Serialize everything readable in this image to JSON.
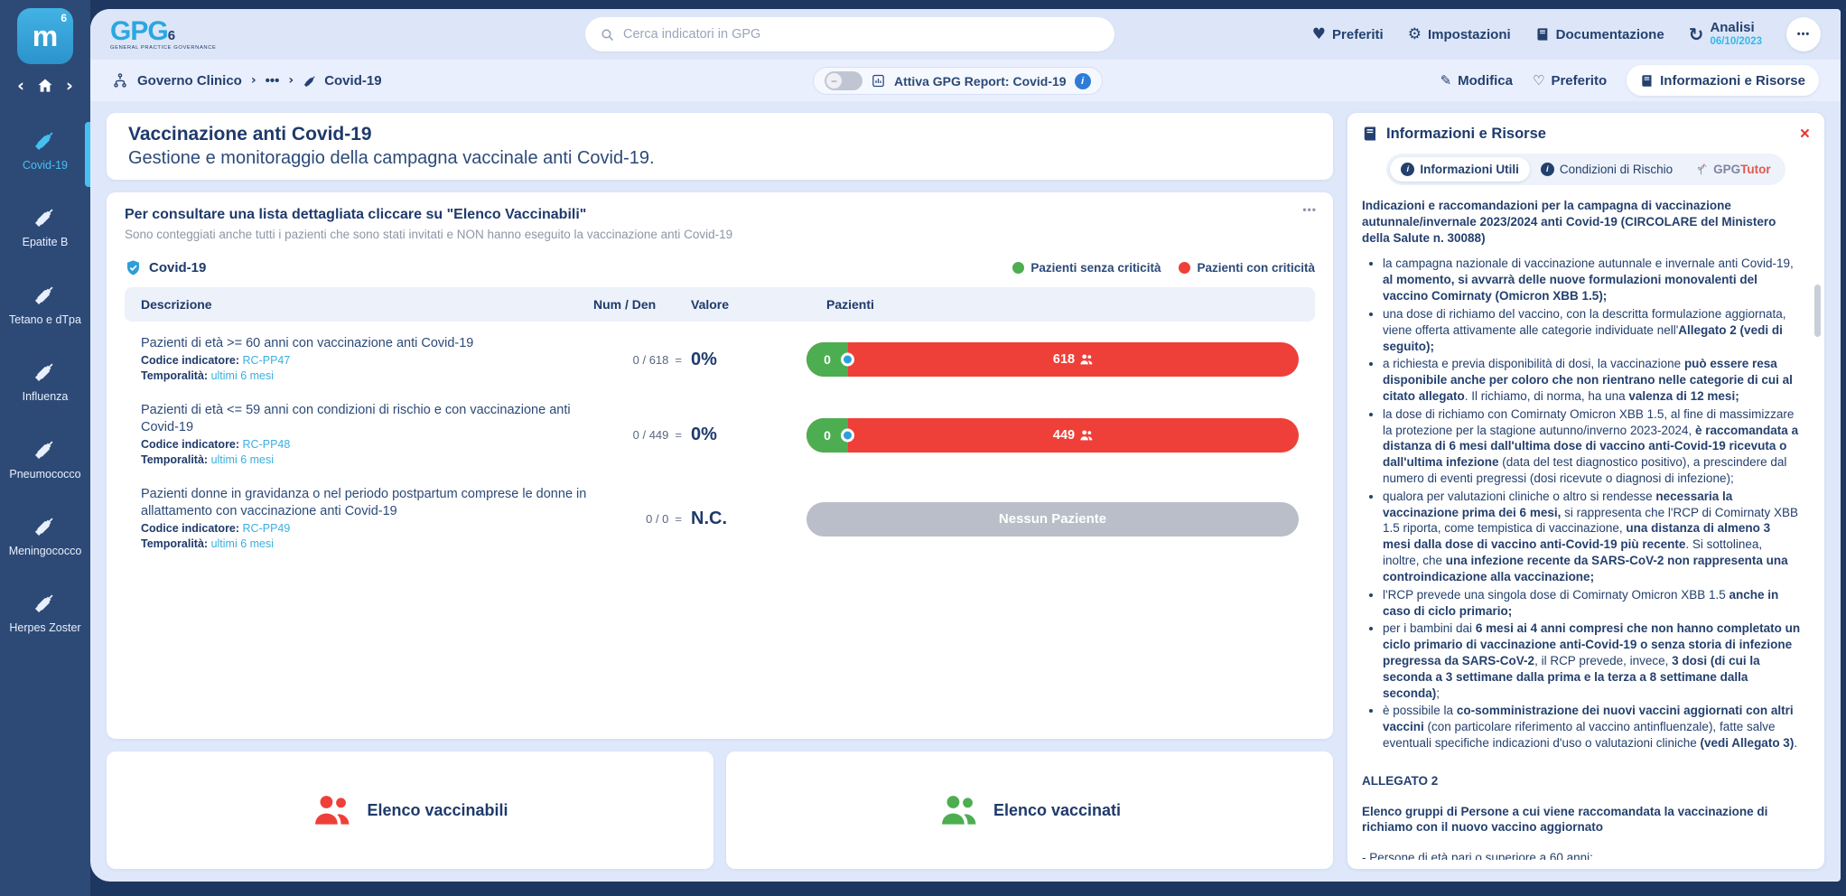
{
  "app": {
    "logo": {
      "word": "GPG",
      "sup": "6",
      "caption": "GENERAL PRACTICE GOVERNANCE",
      "tile_letter": "m",
      "tile_sup": "6"
    },
    "search": {
      "placeholder": "Cerca indicatori in GPG"
    },
    "topnav": [
      {
        "label": "Preferiti"
      },
      {
        "label": "Impostazioni"
      },
      {
        "label": "Documentazione"
      },
      {
        "label": "Analisi",
        "date": "06/10/2023"
      }
    ],
    "more_dots": "•••"
  },
  "breadcrumb": {
    "root": "Governo Clinico",
    "ellipsis": "•••",
    "current": "Covid-19",
    "toggle": {
      "label": "Attiva GPG Report: Covid-19",
      "state": "off",
      "minus": "−",
      "info": "i"
    },
    "actions": [
      {
        "label": "Modifica"
      },
      {
        "label": "Preferito"
      },
      {
        "label": "Informazioni e Risorse"
      }
    ]
  },
  "sidebar": {
    "items": [
      {
        "label": "Covid-19",
        "active": true
      },
      {
        "label": "Epatite B",
        "active": false
      },
      {
        "label": "Tetano e dTpa",
        "active": false
      },
      {
        "label": "Influenza",
        "active": false
      },
      {
        "label": "Pneumococco",
        "active": false
      },
      {
        "label": "Meningococco",
        "active": false
      },
      {
        "label": "Herpes Zoster",
        "active": false
      }
    ]
  },
  "page": {
    "title": "Vaccinazione anti Covid-19",
    "subtitle": "Gestione e monitoraggio della campagna vaccinale anti Covid-19."
  },
  "indicators_card": {
    "title": "Per consultare una lista dettagliata cliccare su \"Elenco Vaccinabili\"",
    "subtitle": "Sono conteggiati anche tutti i pazienti che sono stati invitati e NON hanno eseguito la vaccinazione anti Covid-19",
    "group": "Covid-19",
    "dots": "•••",
    "legend": [
      {
        "label": "Pazienti senza criticità",
        "color": "#4cae50"
      },
      {
        "label": "Pazienti con criticità",
        "color": "#ee4038"
      }
    ],
    "columns": [
      "Descrizione",
      "Num / Den",
      "Valore",
      "Pazienti"
    ],
    "rows": [
      {
        "description": "Pazienti di età >= 60 anni con vaccinazione anti Covid-19",
        "code_label": "Codice indicatore:",
        "code": "RC-PP47",
        "temp_label": "Temporalità:",
        "temporality": "ultimi 6 mesi",
        "num_den": "0 / 618",
        "value": "0%",
        "bar_left": "0",
        "bar_count": "618",
        "bar_type": "split"
      },
      {
        "description": "Pazienti di età <= 59 anni con condizioni di rischio e con vaccinazione anti Covid-19",
        "code_label": "Codice indicatore:",
        "code": "RC-PP48",
        "temp_label": "Temporalità:",
        "temporality": "ultimi 6 mesi",
        "num_den": "0 / 449",
        "value": "0%",
        "bar_left": "0",
        "bar_count": "449",
        "bar_type": "split"
      },
      {
        "description": "Pazienti donne in gravidanza o nel periodo postpartum comprese le donne in allattamento con vaccinazione anti Covid-19",
        "code_label": "Codice indicatore:",
        "code": "RC-PP49",
        "temp_label": "Temporalità:",
        "temporality": "ultimi 6 mesi",
        "num_den": "0 / 0",
        "value": "N.C.",
        "bar_text": "Nessun Paziente",
        "bar_type": "empty"
      }
    ]
  },
  "bottom_actions": [
    {
      "label": "Elenco vaccinabili",
      "color": "#ee4038"
    },
    {
      "label": "Elenco vaccinati",
      "color": "#4cae50"
    }
  ],
  "info_panel": {
    "title": "Informazioni e Risorse",
    "close": "×",
    "tabs": [
      {
        "label": "Informazioni Utili",
        "active": true
      },
      {
        "label": "Condizioni di Rischio",
        "active": false
      },
      {
        "label_a": "GPG",
        "label_b": "Tutor",
        "active": false
      }
    ],
    "heading": "Indicazioni e raccomandazioni per la campagna di vaccinazione autunnale/invernale 2023/2024 anti Covid-19 (CIRCOLARE del Ministero della Salute n. 30088)",
    "bullets": [
      {
        "segments": [
          {
            "t": "la campagna nazionale di vaccinazione autunnale e invernale anti Covid-19, "
          },
          {
            "t": "al momento, si avvarrà delle nuove formulazioni monovalenti del vaccino Comirnaty (Omicron XBB 1.5);",
            "b": true
          }
        ]
      },
      {
        "segments": [
          {
            "t": "una dose di richiamo del vaccino, con la descritta formulazione aggiornata, viene offerta attivamente alle categorie individuate nell'"
          },
          {
            "t": "Allegato 2 (vedi di seguito);",
            "b": true
          }
        ]
      },
      {
        "segments": [
          {
            "t": "a richiesta e previa disponibilità di dosi, la vaccinazione "
          },
          {
            "t": "può essere resa disponibile anche per coloro che non rientrano nelle categorie di cui al citato allegato",
            "b": true
          },
          {
            "t": ". Il richiamo, di norma, ha una "
          },
          {
            "t": "valenza di 12 mesi;",
            "b": true
          }
        ]
      },
      {
        "segments": [
          {
            "t": "la dose di richiamo con Comirnaty Omicron XBB 1.5, al fine di massimizzare la protezione per la stagione autunno/inverno 2023-2024, "
          },
          {
            "t": "è raccomandata a distanza di 6 mesi dall'ultima dose di vaccino anti-Covid-19 ricevuta o dall'ultima infezione",
            "b": true
          },
          {
            "t": " (data del test diagnostico positivo), a prescindere dal numero di eventi pregressi (dosi ricevute o diagnosi di infezione);"
          }
        ]
      },
      {
        "segments": [
          {
            "t": "qualora per valutazioni cliniche o altro si rendesse "
          },
          {
            "t": "necessaria la vaccinazione prima dei 6 mesi,",
            "b": true
          },
          {
            "t": " si rappresenta che l'RCP di Comirnaty XBB 1.5 riporta, come tempistica di vaccinazione, "
          },
          {
            "t": "una distanza di almeno 3 mesi dalla dose di vaccino anti-Covid-19 più recente",
            "b": true
          },
          {
            "t": ". Si sottolinea, inoltre, che "
          },
          {
            "t": "una infezione recente da SARS-CoV-2 non rappresenta una controindicazione alla vaccinazione;",
            "b": true
          }
        ]
      },
      {
        "segments": [
          {
            "t": "l'RCP prevede una singola dose di Comirnaty Omicron XBB 1.5 "
          },
          {
            "t": "anche in caso di ciclo primario;",
            "b": true
          }
        ]
      },
      {
        "segments": [
          {
            "t": "per i bambini dai "
          },
          {
            "t": "6 mesi ai 4 anni compresi che non hanno completato un ciclo primario di vaccinazione anti-Covid-19 o senza storia di infezione pregressa da SARS-CoV-2",
            "b": true
          },
          {
            "t": ", il RCP prevede, invece, "
          },
          {
            "t": "3 dosi (di cui la seconda a 3 settimane dalla prima e la terza a 8 settimane dalla seconda)",
            "b": true
          },
          {
            "t": ";"
          }
        ]
      },
      {
        "segments": [
          {
            "t": "è possibile la "
          },
          {
            "t": "co-somministrazione dei nuovi vaccini aggiornati con altri vaccini",
            "b": true
          },
          {
            "t": " (con particolare riferimento al vaccino antinfluenzale), fatte salve eventuali specifiche indicazioni d'uso o valutazioni cliniche "
          },
          {
            "t": "(vedi Allegato 3)",
            "b": true
          },
          {
            "t": "."
          }
        ]
      }
    ],
    "allegato_title": "ALLEGATO 2",
    "allegato_subtitle": "Elenco gruppi di Persone a cui viene raccomandata la vaccinazione di richiamo con il nuovo vaccino aggiornato",
    "allegato_item": "- Persone di età pari o superiore a 60 anni;"
  },
  "colors": {
    "accent_blue": "#3aafe0",
    "navy": "#24406e",
    "red": "#ee4038",
    "green": "#4cae50",
    "gray_bar": "#b9bec8"
  }
}
